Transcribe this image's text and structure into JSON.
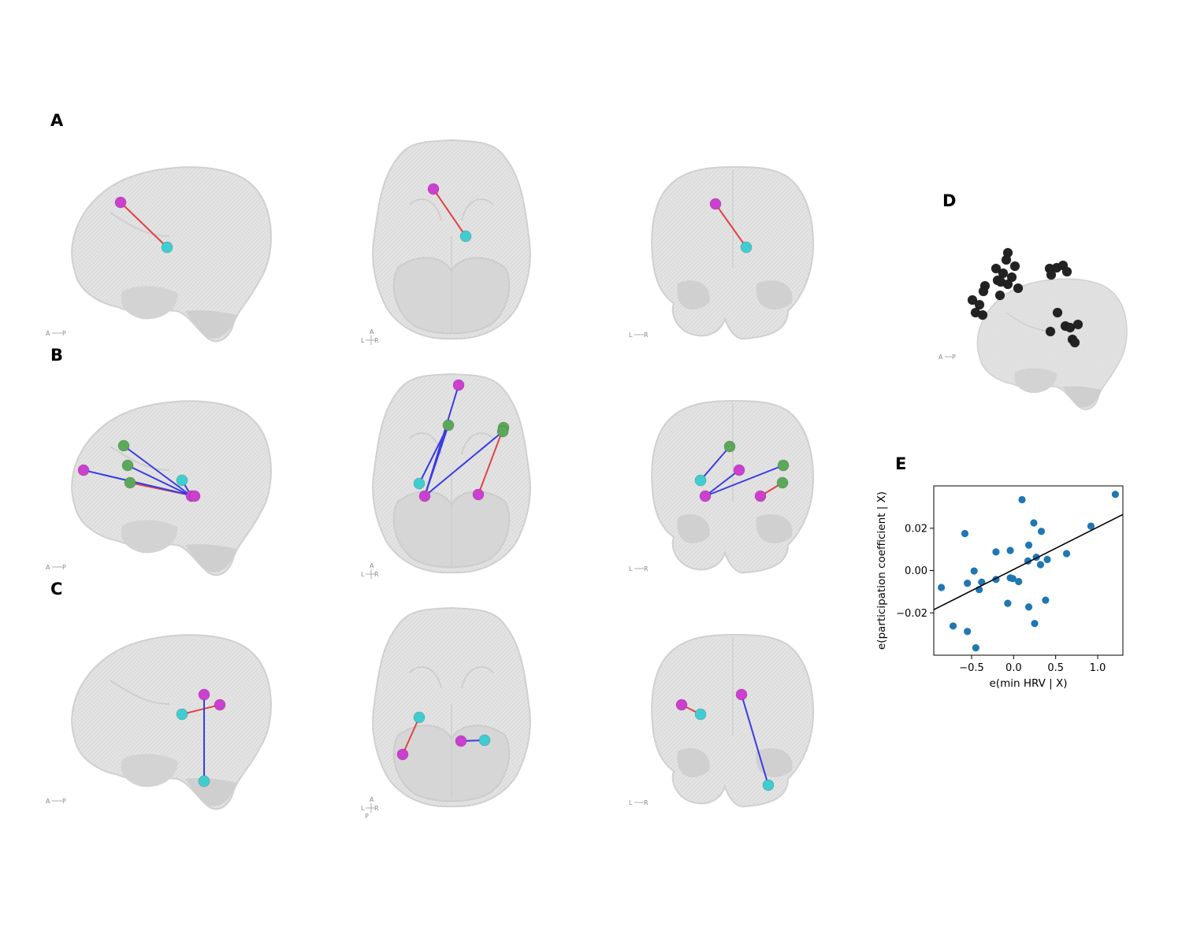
{
  "panel_labels": {
    "a": "A",
    "b": "B",
    "c": "C",
    "d": "D",
    "e": "E"
  },
  "orientation_labels": {
    "sagittal_left": "A",
    "sagittal_right": "P",
    "axial_top": "A",
    "axial_left": "L",
    "axial_right": "R",
    "axial_bottom": "P",
    "coronal_left": "L",
    "coronal_right": "R"
  },
  "colors": {
    "brain": "#d8d8d8",
    "brain_fold": "#c7c7c7",
    "node_magenta": "#cc3fcf",
    "node_cyan": "#3fcdd0",
    "node_green": "#5ba85b",
    "node_black": "#222222",
    "edge_positive": "#e04343",
    "edge_negative": "#3a3ae6",
    "scatter_point": "#1f77b4",
    "fit_line": "#000000"
  },
  "chart_data": {
    "type": "scatter",
    "title": "",
    "xlabel": "e(min HRV | X)",
    "ylabel": "e(participation coefficient | X)",
    "xlim": [
      -0.95,
      1.3
    ],
    "ylim": [
      -0.04,
      0.04
    ],
    "xticks": [
      -0.5,
      0.0,
      0.5,
      1.0
    ],
    "xtick_labels": [
      "−0.5",
      "0.0",
      "0.5",
      "1.0"
    ],
    "yticks": [
      -0.02,
      0.0,
      0.02
    ],
    "ytick_labels": [
      "−0.02",
      "0.00",
      "0.02"
    ],
    "grid": false,
    "legend": "none",
    "series": [
      {
        "x": [
          -0.86,
          -0.58,
          -0.55,
          -0.47,
          -0.41,
          -0.38,
          -0.72,
          -0.55,
          -0.45,
          -0.21,
          -0.21,
          -0.07,
          -0.04,
          -0.04,
          -0.01,
          0.06,
          0.1,
          0.17,
          0.18,
          0.18,
          0.24,
          0.27,
          0.32,
          0.33,
          0.38,
          0.4,
          0.25,
          0.63,
          0.92,
          1.21
        ],
        "y": [
          -0.008,
          0.0175,
          -0.006,
          -0.0002,
          -0.009,
          -0.0055,
          -0.0262,
          -0.0288,
          -0.0365,
          0.0088,
          -0.0042,
          -0.0155,
          0.0095,
          -0.0035,
          -0.0038,
          -0.0052,
          0.0335,
          0.0045,
          0.012,
          -0.0172,
          0.0225,
          0.0063,
          0.0028,
          0.0185,
          -0.014,
          0.0052,
          -0.025,
          0.008,
          0.021,
          0.036
        ]
      }
    ],
    "fit_line": {
      "x": [
        -0.95,
        1.3
      ],
      "y": [
        -0.0185,
        0.0265
      ]
    }
  }
}
